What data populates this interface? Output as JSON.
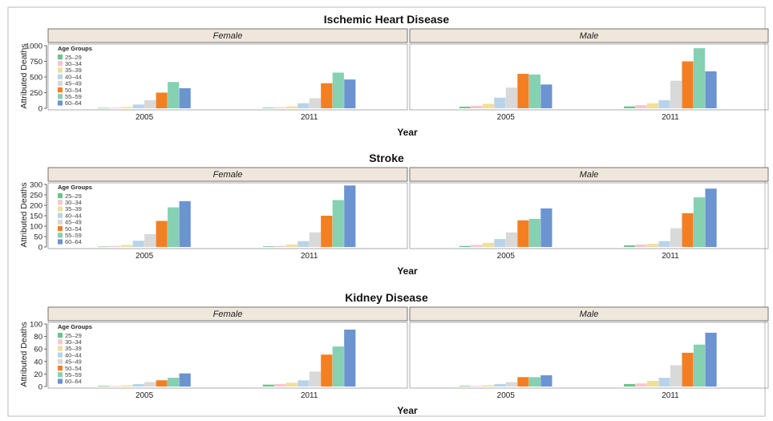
{
  "x_axis_label": "Year",
  "y_axis_label": "Attributed Deaths",
  "legend_title": "Age Groups",
  "facets": [
    "Female",
    "Male"
  ],
  "colors": {
    "25–29": "#6cc48c",
    "30–34": "#f6c6cf",
    "35–39": "#f0df9c",
    "40–44": "#b9d3ea",
    "45–49": "#d9d9d9",
    "50–54": "#f47f22",
    "55–59": "#85d1b2",
    "60–64": "#6b94d1"
  },
  "chart_data": [
    {
      "type": "bar",
      "title": "Ischemic Heart Disease",
      "xlabel": "Year",
      "ylabel": "Attributed Deaths",
      "ylim": [
        0,
        1000
      ],
      "yticks": [
        0,
        250,
        500,
        750,
        1000
      ],
      "categories": [
        "2005",
        "2011"
      ],
      "age_groups": [
        "25–29",
        "30–34",
        "35–39",
        "40–44",
        "45–49",
        "50–54",
        "55–59",
        "60–64"
      ],
      "panels": [
        {
          "facet": "Female",
          "series": [
            {
              "name": "2005",
              "values": [
                5,
                10,
                20,
                60,
                130,
                250,
                420,
                320
              ]
            },
            {
              "name": "2011",
              "values": [
                10,
                15,
                30,
                80,
                160,
                400,
                570,
                460
              ]
            }
          ]
        },
        {
          "facet": "Male",
          "series": [
            {
              "name": "2005",
              "values": [
                25,
                40,
                70,
                170,
                330,
                550,
                540,
                380
              ]
            },
            {
              "name": "2011",
              "values": [
                30,
                50,
                80,
                130,
                440,
                750,
                960,
                590
              ]
            }
          ]
        }
      ]
    },
    {
      "type": "bar",
      "title": "Stroke",
      "xlabel": "Year",
      "ylabel": "Attributed Deaths",
      "ylim": [
        0,
        300
      ],
      "yticks": [
        0,
        50,
        100,
        150,
        200,
        250,
        300
      ],
      "categories": [
        "2005",
        "2011"
      ],
      "age_groups": [
        "25–29",
        "30–34",
        "35–39",
        "40–44",
        "45–49",
        "50–54",
        "55–59",
        "60–64"
      ],
      "panels": [
        {
          "facet": "Female",
          "series": [
            {
              "name": "2005",
              "values": [
                2,
                5,
                10,
                30,
                62,
                125,
                190,
                220
              ]
            },
            {
              "name": "2011",
              "values": [
                3,
                5,
                12,
                28,
                70,
                150,
                225,
                295
              ]
            }
          ]
        },
        {
          "facet": "Male",
          "series": [
            {
              "name": "2005",
              "values": [
                5,
                10,
                20,
                38,
                70,
                128,
                135,
                185
              ]
            },
            {
              "name": "2011",
              "values": [
                8,
                12,
                15,
                28,
                90,
                162,
                238,
                280
              ]
            }
          ]
        }
      ]
    },
    {
      "type": "bar",
      "title": "Kidney Disease",
      "xlabel": "Year",
      "ylabel": "Attributed Deaths",
      "ylim": [
        0,
        100
      ],
      "yticks": [
        0,
        20,
        40,
        60,
        80,
        100
      ],
      "categories": [
        "2005",
        "2011"
      ],
      "age_groups": [
        "25–29",
        "30–34",
        "35–39",
        "40–44",
        "45–49",
        "50–54",
        "55–59",
        "60–64"
      ],
      "panels": [
        {
          "facet": "Female",
          "series": [
            {
              "name": "2005",
              "values": [
                1,
                1,
                2,
                4,
                7,
                10,
                14,
                21
              ]
            },
            {
              "name": "2011",
              "values": [
                3,
                4,
                6,
                10,
                24,
                51,
                64,
                91
              ]
            }
          ]
        },
        {
          "facet": "Male",
          "series": [
            {
              "name": "2005",
              "values": [
                1,
                1,
                2,
                4,
                7,
                15,
                15,
                18
              ]
            },
            {
              "name": "2011",
              "values": [
                4,
                5,
                9,
                14,
                34,
                54,
                67,
                86
              ]
            }
          ]
        }
      ]
    }
  ]
}
